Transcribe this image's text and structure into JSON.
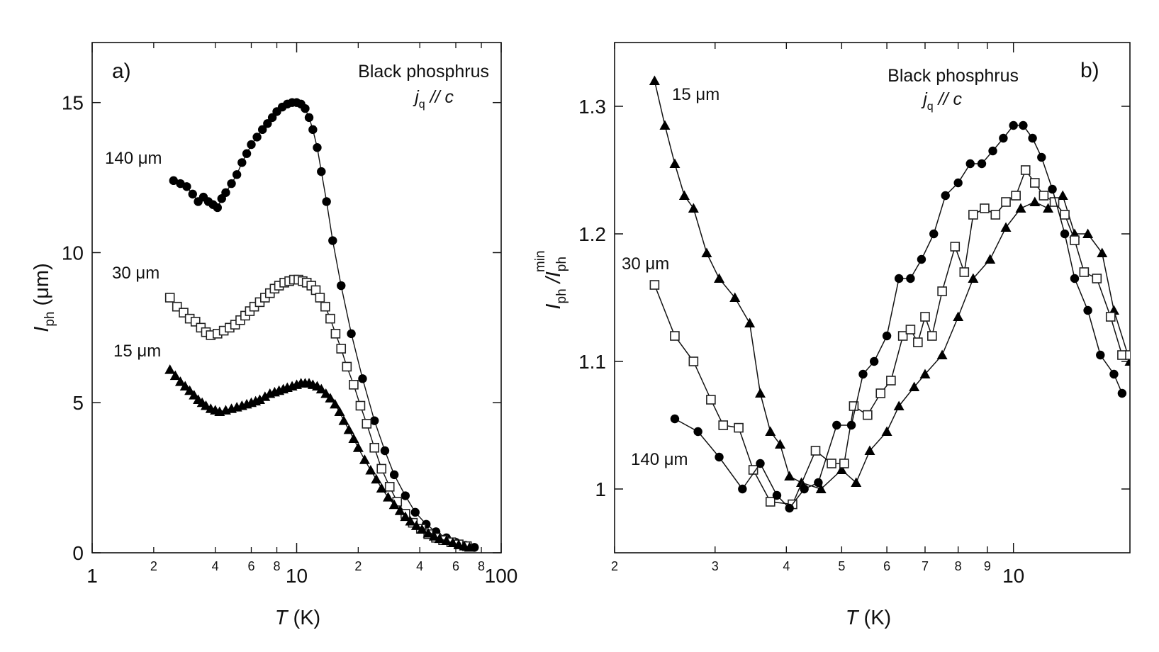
{
  "chart_data": [
    {
      "type": "scatter",
      "panel_label": "a)",
      "title_line1": "Black phosphrus",
      "title_line2": {
        "j": "j",
        "sub": "q",
        "rest": " // c"
      },
      "xlabel": {
        "T": "T",
        "unit": " (K)"
      },
      "ylabel": {
        "I": "I",
        "sub": "ph",
        "unit": " (μm)"
      },
      "xscale": "log",
      "xlim": [
        1,
        100
      ],
      "ylim": [
        0,
        17
      ],
      "x_major_ticks": [
        1,
        10,
        100
      ],
      "x_major_labels": [
        "1",
        "10",
        "100"
      ],
      "x_minor_ticks": [
        2,
        4,
        6,
        8,
        20,
        40,
        60,
        80
      ],
      "x_minor_labels": [
        "2",
        "4",
        "6",
        "8",
        "2",
        "4",
        "6",
        "8"
      ],
      "y_ticks": [
        0,
        5,
        10,
        15
      ],
      "y_labels": [
        "0",
        "5",
        "10",
        "15"
      ],
      "series": [
        {
          "name": "140 μm",
          "label": "140 μm",
          "marker": "filled-circle",
          "x": [
            2.5,
            2.7,
            2.9,
            3.1,
            3.3,
            3.5,
            3.7,
            3.9,
            4.1,
            4.3,
            4.5,
            4.8,
            5.1,
            5.4,
            5.7,
            6.0,
            6.4,
            6.8,
            7.2,
            7.6,
            8.0,
            8.5,
            9.0,
            9.5,
            10.0,
            10.5,
            11.0,
            11.5,
            12.0,
            12.6,
            13.2,
            14.0,
            15.0,
            16.5,
            18.5,
            21.0,
            24.0,
            27.0,
            30.0,
            34.0,
            38.0,
            43.0,
            48.0,
            54.0,
            60.0,
            67.0,
            74.0
          ],
          "y": [
            12.4,
            12.3,
            12.2,
            11.95,
            11.7,
            11.85,
            11.7,
            11.6,
            11.5,
            11.8,
            12.0,
            12.3,
            12.6,
            13.0,
            13.3,
            13.6,
            13.85,
            14.1,
            14.3,
            14.5,
            14.7,
            14.85,
            14.95,
            15.0,
            15.0,
            14.95,
            14.8,
            14.5,
            14.1,
            13.5,
            12.7,
            11.7,
            10.4,
            8.9,
            7.3,
            5.8,
            4.4,
            3.4,
            2.6,
            1.9,
            1.35,
            0.95,
            0.7,
            0.5,
            0.35,
            0.25,
            0.18
          ]
        },
        {
          "name": "30 μm",
          "label": "30 μm",
          "marker": "open-square",
          "x": [
            2.4,
            2.6,
            2.8,
            3.0,
            3.2,
            3.4,
            3.6,
            3.8,
            4.1,
            4.4,
            4.7,
            5.0,
            5.3,
            5.6,
            5.9,
            6.2,
            6.6,
            7.0,
            7.4,
            7.8,
            8.2,
            8.7,
            9.2,
            9.7,
            10.2,
            10.7,
            11.2,
            11.8,
            12.4,
            13.0,
            13.8,
            14.6,
            15.5,
            16.5,
            17.6,
            19.0,
            20.5,
            22.0,
            24.0,
            26.0,
            28.5,
            31.0,
            34.0,
            37.0,
            40.5,
            44.0,
            48.0,
            52.0,
            57.0,
            62.0,
            68.0
          ],
          "y": [
            8.5,
            8.2,
            8.0,
            7.8,
            7.7,
            7.5,
            7.35,
            7.25,
            7.3,
            7.4,
            7.5,
            7.6,
            7.75,
            7.9,
            8.05,
            8.2,
            8.35,
            8.5,
            8.65,
            8.8,
            8.9,
            9.0,
            9.05,
            9.1,
            9.1,
            9.05,
            9.0,
            8.9,
            8.75,
            8.5,
            8.2,
            7.8,
            7.3,
            6.8,
            6.2,
            5.6,
            4.9,
            4.3,
            3.5,
            2.8,
            2.2,
            1.7,
            1.3,
            1.0,
            0.8,
            0.62,
            0.5,
            0.42,
            0.35,
            0.28,
            0.22
          ]
        },
        {
          "name": "15 μm",
          "label": "15 μm",
          "marker": "filled-triangle",
          "x": [
            2.4,
            2.55,
            2.7,
            2.85,
            3.0,
            3.15,
            3.3,
            3.45,
            3.6,
            3.8,
            4.0,
            4.2,
            4.5,
            4.8,
            5.1,
            5.4,
            5.7,
            6.0,
            6.3,
            6.6,
            7.0,
            7.4,
            7.8,
            8.2,
            8.6,
            9.0,
            9.5,
            10.0,
            10.5,
            11.0,
            11.5,
            12.0,
            12.6,
            13.2,
            13.9,
            14.6,
            15.4,
            16.2,
            17.0,
            18.0,
            19.0,
            20.0,
            21.5,
            23.0,
            24.5,
            26.0,
            28.0,
            30.0,
            32.0,
            34.0,
            36.0,
            38.5,
            41.0,
            44.0,
            47.0,
            50.0,
            54.0,
            58.0,
            62.0,
            66.0,
            70.0
          ],
          "y": [
            6.1,
            5.9,
            5.7,
            5.55,
            5.4,
            5.25,
            5.1,
            5.0,
            4.9,
            4.8,
            4.75,
            4.7,
            4.75,
            4.8,
            4.85,
            4.9,
            4.95,
            5.0,
            5.05,
            5.1,
            5.2,
            5.3,
            5.35,
            5.4,
            5.45,
            5.5,
            5.55,
            5.6,
            5.65,
            5.65,
            5.65,
            5.6,
            5.55,
            5.45,
            5.3,
            5.15,
            4.95,
            4.7,
            4.4,
            4.1,
            3.8,
            3.5,
            3.1,
            2.75,
            2.45,
            2.15,
            1.85,
            1.6,
            1.4,
            1.2,
            1.05,
            0.9,
            0.78,
            0.65,
            0.55,
            0.47,
            0.4,
            0.33,
            0.27,
            0.22,
            0.18
          ]
        }
      ]
    },
    {
      "type": "line",
      "panel_label": "b)",
      "title_line1": "Black phosphrus",
      "title_line2": {
        "j": "j",
        "sub": "q",
        "rest": " // c"
      },
      "xlabel": {
        "T": "T",
        "unit": " (K)"
      },
      "ylabel": {
        "I1": "I",
        "sub1": "ph",
        "mid": " /I",
        "sub2": "ph",
        "sup2": "min"
      },
      "xscale": "log",
      "xlim": [
        2,
        16
      ],
      "ylim": [
        0.95,
        1.35
      ],
      "x_ticks": [
        2,
        3,
        4,
        5,
        6,
        7,
        8,
        9,
        10
      ],
      "x_labels": [
        "2",
        "3",
        "4",
        "5",
        "6",
        "7",
        "8",
        "9",
        "10"
      ],
      "y_ticks": [
        1.0,
        1.1,
        1.2,
        1.3
      ],
      "y_labels": [
        "1",
        "1.1",
        "1.2",
        "1.3"
      ],
      "series": [
        {
          "name": "15 μm",
          "label": "15 μm",
          "marker": "filled-triangle",
          "x": [
            2.35,
            2.45,
            2.55,
            2.65,
            2.75,
            2.9,
            3.05,
            3.25,
            3.45,
            3.6,
            3.75,
            3.9,
            4.05,
            4.25,
            4.6,
            5.0,
            5.3,
            5.6,
            6.0,
            6.3,
            6.7,
            7.0,
            7.5,
            8.0,
            8.5,
            9.1,
            9.7,
            10.3,
            10.9,
            11.5,
            12.2,
            12.8,
            13.5,
            14.3,
            15.0,
            16.0
          ],
          "y": [
            1.32,
            1.285,
            1.255,
            1.23,
            1.22,
            1.185,
            1.165,
            1.15,
            1.13,
            1.075,
            1.045,
            1.035,
            1.01,
            1.005,
            1.0,
            1.015,
            1.005,
            1.03,
            1.045,
            1.065,
            1.08,
            1.09,
            1.105,
            1.135,
            1.165,
            1.18,
            1.205,
            1.22,
            1.225,
            1.22,
            1.23,
            1.2,
            1.2,
            1.185,
            1.14,
            1.1
          ]
        },
        {
          "name": "30 μm",
          "label": "30 μm",
          "marker": "open-square",
          "x": [
            2.35,
            2.55,
            2.75,
            2.95,
            3.1,
            3.3,
            3.5,
            3.75,
            4.1,
            4.5,
            4.8,
            5.05,
            5.25,
            5.55,
            5.85,
            6.1,
            6.4,
            6.6,
            6.8,
            7.0,
            7.2,
            7.5,
            7.9,
            8.2,
            8.5,
            8.9,
            9.3,
            9.7,
            10.1,
            10.5,
            10.9,
            11.3,
            11.8,
            12.3,
            12.8,
            13.3,
            14.0,
            14.8,
            15.5,
            16.0
          ],
          "y": [
            1.16,
            1.12,
            1.1,
            1.07,
            1.05,
            1.048,
            1.015,
            0.99,
            0.988,
            1.03,
            1.02,
            1.02,
            1.065,
            1.058,
            1.075,
            1.085,
            1.12,
            1.125,
            1.115,
            1.135,
            1.12,
            1.155,
            1.19,
            1.17,
            1.215,
            1.22,
            1.215,
            1.225,
            1.23,
            1.25,
            1.24,
            1.23,
            1.225,
            1.215,
            1.195,
            1.17,
            1.165,
            1.135,
            1.105,
            1.105
          ]
        },
        {
          "name": "140 μm",
          "label": "140 μm",
          "marker": "filled-circle",
          "x": [
            2.55,
            2.8,
            3.05,
            3.35,
            3.6,
            3.85,
            4.05,
            4.3,
            4.55,
            4.9,
            5.2,
            5.45,
            5.7,
            6.0,
            6.3,
            6.6,
            6.9,
            7.25,
            7.6,
            8.0,
            8.4,
            8.8,
            9.2,
            9.6,
            10.0,
            10.4,
            10.8,
            11.2,
            11.7,
            12.3,
            12.8,
            13.5,
            14.2,
            15.0,
            15.5
          ],
          "y": [
            1.055,
            1.045,
            1.025,
            1.0,
            1.02,
            0.995,
            0.985,
            1.0,
            1.005,
            1.05,
            1.05,
            1.09,
            1.1,
            1.12,
            1.165,
            1.165,
            1.18,
            1.2,
            1.23,
            1.24,
            1.255,
            1.255,
            1.265,
            1.275,
            1.285,
            1.285,
            1.275,
            1.26,
            1.235,
            1.2,
            1.165,
            1.14,
            1.105,
            1.09,
            1.075
          ]
        }
      ]
    }
  ]
}
